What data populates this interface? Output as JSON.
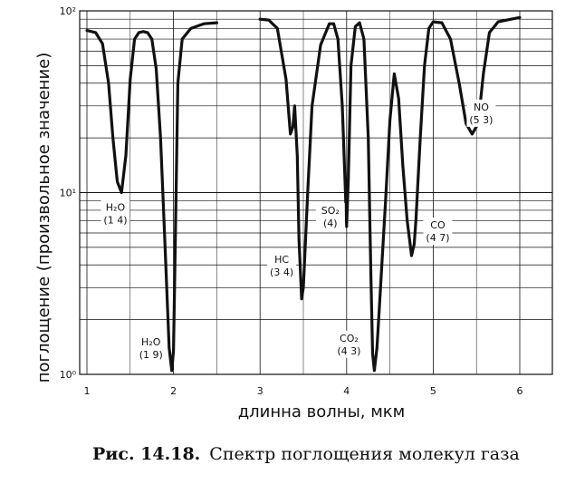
{
  "chart_data": {
    "type": "line",
    "ylabel": "поглощение (произвольное значение)",
    "xlabel": "длинна волны, мкм",
    "scale": {
      "y": "log"
    },
    "xlim": [
      1,
      6.4
    ],
    "ylim": [
      1,
      100
    ],
    "x_ticks": [
      1,
      2,
      3,
      4,
      5,
      6
    ],
    "x_tick_labels": [
      "1",
      "2",
      "3",
      "4",
      "5",
      "6"
    ],
    "y_ticks": [
      1,
      10,
      100
    ],
    "y_tick_labels": [
      "10⁰",
      "10¹",
      "10²"
    ],
    "grid": true,
    "series": [
      {
        "x": [
          1.0,
          1.1,
          1.18,
          1.25,
          1.3,
          1.35,
          1.4,
          1.45,
          1.5,
          1.55,
          1.6,
          1.65,
          1.7,
          1.75,
          1.8,
          1.85,
          1.9,
          1.95,
          1.98,
          2.0,
          2.02,
          2.05,
          2.1,
          2.2,
          2.35,
          2.5
        ],
        "y": [
          78,
          76,
          66,
          40,
          20,
          11.5,
          10.0,
          16,
          42,
          70,
          76,
          77,
          76,
          70,
          48,
          20,
          5.5,
          1.4,
          1.05,
          1.35,
          5,
          40,
          70,
          80,
          85,
          86
        ],
        "gap_after_index": 25
      },
      {
        "x": [
          3.0,
          3.1,
          3.2,
          3.3,
          3.35,
          3.38,
          3.4,
          3.43,
          3.45,
          3.48,
          3.5,
          3.55,
          3.6,
          3.7,
          3.8,
          3.85,
          3.9,
          3.95,
          3.98,
          4.0,
          4.02,
          4.05,
          4.1,
          4.15,
          4.2,
          4.25,
          4.28,
          4.3,
          4.32,
          4.35,
          4.38,
          4.4,
          4.45,
          4.5,
          4.55,
          4.6,
          4.65,
          4.7,
          4.75,
          4.78,
          4.8,
          4.85,
          4.9,
          4.95,
          5.0,
          5.1,
          5.2,
          5.3,
          5.38,
          5.45,
          5.52,
          5.58,
          5.65,
          5.75,
          5.9,
          6.0
        ],
        "y": [
          90,
          89,
          80,
          42,
          21,
          23,
          30,
          16,
          5.5,
          2.6,
          3.0,
          10,
          30,
          65,
          85,
          85,
          70,
          30,
          12,
          6.5,
          12,
          50,
          82,
          86,
          70,
          20,
          3.5,
          1.3,
          1.05,
          1.4,
          2.4,
          3.5,
          9,
          25,
          45,
          33,
          14,
          7,
          4.5,
          5.2,
          7.0,
          20,
          50,
          80,
          87,
          86,
          70,
          40,
          24,
          21,
          24,
          45,
          76,
          87,
          90,
          92
        ]
      }
    ],
    "annotations": [
      {
        "lines": [
          "H₂O",
          "(1 4)"
        ],
        "x": 1.35,
        "y": 10.0
      },
      {
        "lines": [
          "H₂O",
          "(1 9)"
        ],
        "x": 1.97,
        "y": 1.05
      },
      {
        "lines": [
          "HC",
          "(3 4)"
        ],
        "x": 3.48,
        "y": 2.6
      },
      {
        "lines": [
          "SO₂",
          "(4)"
        ],
        "x": 4.0,
        "y": 6.5
      },
      {
        "lines": [
          "CO₂",
          "(4 3)"
        ],
        "x": 4.32,
        "y": 1.05
      },
      {
        "lines": [
          "CO",
          "(4 7)"
        ],
        "x": 4.76,
        "y": 4.5
      },
      {
        "lines": [
          "NO",
          "(5 3)"
        ],
        "x": 5.45,
        "y": 21
      }
    ]
  },
  "caption": {
    "prefix": "Рис. 14.18.",
    "text": "Спектр поглощения молекул газа"
  }
}
